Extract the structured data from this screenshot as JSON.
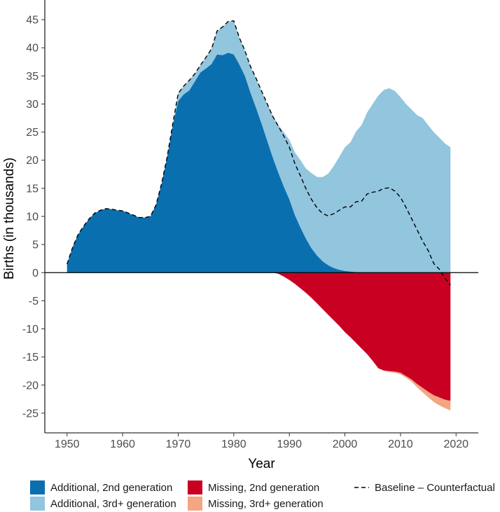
{
  "chart_data": {
    "type": "area",
    "xlabel": "Year",
    "ylabel": "Births (in thousands)",
    "xlim": [
      1946,
      2024
    ],
    "ylim": [
      -28.5,
      48.5
    ],
    "x_ticks": [
      1950,
      1960,
      1970,
      1980,
      1990,
      2000,
      2010,
      2020
    ],
    "x_tick_labels": [
      "1950",
      "1960",
      "1970",
      "1980",
      "1990",
      "2000",
      "2010",
      "2020"
    ],
    "y_ticks": [
      45,
      40,
      35,
      30,
      25,
      20,
      15,
      10,
      5,
      0,
      -5,
      -10,
      -15,
      -20,
      -25
    ],
    "y_tick_labels": [
      "45",
      "40",
      "35",
      "30",
      "25",
      "20",
      "15",
      "10",
      "5",
      "0",
      "-5",
      "-10",
      "-15",
      "-20",
      "-25"
    ],
    "grid": false,
    "legend_position": "bottom",
    "x": [
      1950,
      1951,
      1952,
      1953,
      1954,
      1955,
      1956,
      1957,
      1958,
      1959,
      1960,
      1961,
      1962,
      1963,
      1964,
      1965,
      1966,
      1967,
      1968,
      1969,
      1970,
      1971,
      1972,
      1973,
      1974,
      1975,
      1976,
      1977,
      1978,
      1979,
      1980,
      1981,
      1982,
      1983,
      1984,
      1985,
      1986,
      1987,
      1988,
      1989,
      1990,
      1991,
      1992,
      1993,
      1994,
      1995,
      1996,
      1997,
      1998,
      1999,
      2000,
      2001,
      2002,
      2003,
      2004,
      2005,
      2006,
      2007,
      2008,
      2009,
      2010,
      2011,
      2012,
      2013,
      2014,
      2015,
      2016,
      2017,
      2018,
      2019
    ],
    "series": [
      {
        "name": "Additional, 2nd generation",
        "color": "#0a6faf",
        "values": [
          1.5,
          4.5,
          6.8,
          8.3,
          9.6,
          10.6,
          11.1,
          11.4,
          11.3,
          11.1,
          11.0,
          10.6,
          10.2,
          9.8,
          9.8,
          10.0,
          12.0,
          15.8,
          20.5,
          26.0,
          30.5,
          31.7,
          32.4,
          34.0,
          35.6,
          36.3,
          37.1,
          38.8,
          38.7,
          39.1,
          38.8,
          37.0,
          35.0,
          32.0,
          29.3,
          26.5,
          23.5,
          20.5,
          17.8,
          15.3,
          13.0,
          10.2,
          8.0,
          6.0,
          4.3,
          3.0,
          2.0,
          1.3,
          0.8,
          0.5,
          0.3,
          0.2,
          0.1,
          0.05,
          0,
          0,
          0,
          0,
          0,
          0,
          0,
          0,
          0,
          0,
          0,
          0,
          0,
          0,
          0,
          0
        ]
      },
      {
        "name": "Additional, 3rd+ generation",
        "color": "#92c5de",
        "values": [
          0,
          0,
          0,
          0,
          0,
          0,
          0,
          0,
          0,
          0,
          0,
          0,
          0,
          0,
          0,
          0,
          0,
          0,
          0,
          0.3,
          1.4,
          1.5,
          1.8,
          1.4,
          1.3,
          2.0,
          2.7,
          4.2,
          5.0,
          5.6,
          6.0,
          4.8,
          4.5,
          4.7,
          5.3,
          5.8,
          6.6,
          7.5,
          8.5,
          9.7,
          10.6,
          11.2,
          12.0,
          12.5,
          13.4,
          14.0,
          15.0,
          16.3,
          18.2,
          20.1,
          22.0,
          23.0,
          25.0,
          26.2,
          28.5,
          30.0,
          31.5,
          32.5,
          32.8,
          32.3,
          31.2,
          30.0,
          29.0,
          28.0,
          27.5,
          26.2,
          25.0,
          24.0,
          23.0,
          22.3
        ]
      },
      {
        "name": "Missing, 2nd generation",
        "color": "#c80123",
        "values": [
          0,
          0,
          0,
          0,
          0,
          0,
          0,
          0,
          0,
          0,
          0,
          0,
          0,
          0,
          0,
          0,
          0,
          0,
          0,
          0,
          0,
          0,
          0,
          0,
          0,
          0,
          0,
          0,
          0,
          0,
          0,
          0,
          0,
          0,
          0,
          0,
          0,
          0,
          -0.2,
          -0.7,
          -1.3,
          -2.0,
          -2.8,
          -3.6,
          -4.5,
          -5.5,
          -6.5,
          -7.5,
          -8.5,
          -9.5,
          -10.6,
          -11.5,
          -12.5,
          -13.5,
          -14.5,
          -15.7,
          -17.0,
          -17.4,
          -17.5,
          -17.6,
          -17.8,
          -18.4,
          -19.0,
          -19.8,
          -20.5,
          -21.2,
          -21.8,
          -22.2,
          -22.6,
          -22.8
        ]
      },
      {
        "name": "Missing, 3rd+ generation",
        "color": "#f4a582",
        "values": [
          0,
          0,
          0,
          0,
          0,
          0,
          0,
          0,
          0,
          0,
          0,
          0,
          0,
          0,
          0,
          0,
          0,
          0,
          0,
          0,
          0,
          0,
          0,
          0,
          0,
          0,
          0,
          0,
          0,
          0,
          0,
          0,
          0,
          0,
          0,
          0,
          0,
          0,
          0,
          0,
          0,
          0,
          0,
          0,
          0,
          0,
          0,
          0,
          0,
          0,
          0,
          0,
          0,
          0,
          0,
          0,
          0,
          -0.1,
          -0.2,
          -0.2,
          -0.3,
          -0.3,
          -0.4,
          -0.6,
          -0.8,
          -1.0,
          -1.2,
          -1.4,
          -1.5,
          -1.7
        ]
      },
      {
        "name": "Baseline – Counterfactual",
        "style": "dashed",
        "color": "#000000",
        "values": [
          1.5,
          4.5,
          6.8,
          8.3,
          9.6,
          10.6,
          11.1,
          11.4,
          11.3,
          11.1,
          11.0,
          10.6,
          10.2,
          9.8,
          9.8,
          10.0,
          12.0,
          15.8,
          20.5,
          26.3,
          31.9,
          33.2,
          34.2,
          35.4,
          36.9,
          38.3,
          39.8,
          43.0,
          43.7,
          44.7,
          44.8,
          41.8,
          39.5,
          36.7,
          34.6,
          32.3,
          30.1,
          27.8,
          26.1,
          24.3,
          22.3,
          19.4,
          17.2,
          14.9,
          13.0,
          11.5,
          10.5,
          10.1,
          10.5,
          11.1,
          11.7,
          11.7,
          12.6,
          12.7,
          14.0,
          14.3,
          14.5,
          15.0,
          15.1,
          14.5,
          13.4,
          11.6,
          9.6,
          7.6,
          5.6,
          3.9,
          1.6,
          0.6,
          -1.0,
          -2.2
        ]
      }
    ]
  }
}
